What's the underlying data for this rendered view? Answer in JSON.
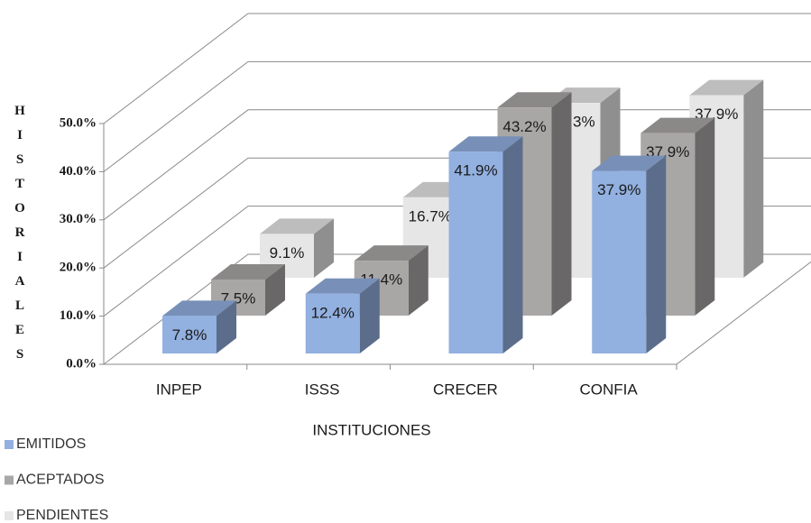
{
  "chart_data": {
    "type": "bar3d",
    "y_label": "HISTORIALES",
    "x_label": "INSTITUCIONES",
    "categories": [
      "INPEP",
      "ISSS",
      "CRECER",
      "CONFIA"
    ],
    "series": [
      {
        "name": "EMITIDOS",
        "color": "#92b0e0",
        "values": [
          7.8,
          12.4,
          41.9,
          37.9
        ],
        "value_labels": [
          "7.8%",
          "12.4%",
          "41.9%",
          "37.9%"
        ]
      },
      {
        "name": "ACEPTADOS",
        "color": "#a9a6a6",
        "values": [
          7.5,
          11.4,
          43.2,
          37.9
        ],
        "value_labels": [
          "7.5%",
          "11.4%",
          "43.2%",
          "37.9%"
        ]
      },
      {
        "name": "PENDIENTES",
        "color": "#e6e6e6",
        "values": [
          9.1,
          16.7,
          36.3,
          37.9
        ],
        "value_labels": [
          "9.1%",
          "16.7%",
          "36.3%",
          "37.9%"
        ]
      }
    ],
    "ylim": [
      0,
      50
    ],
    "yticks": [
      {
        "value": 0,
        "label": "0.0%"
      },
      {
        "value": 10,
        "label": "10.0%"
      },
      {
        "value": 20,
        "label": "20.0%"
      },
      {
        "value": 30,
        "label": "30.0%"
      },
      {
        "value": 40,
        "label": "40.0%"
      },
      {
        "value": 50,
        "label": "50.0%"
      }
    ],
    "grid": true,
    "legend": "bottom-left"
  }
}
